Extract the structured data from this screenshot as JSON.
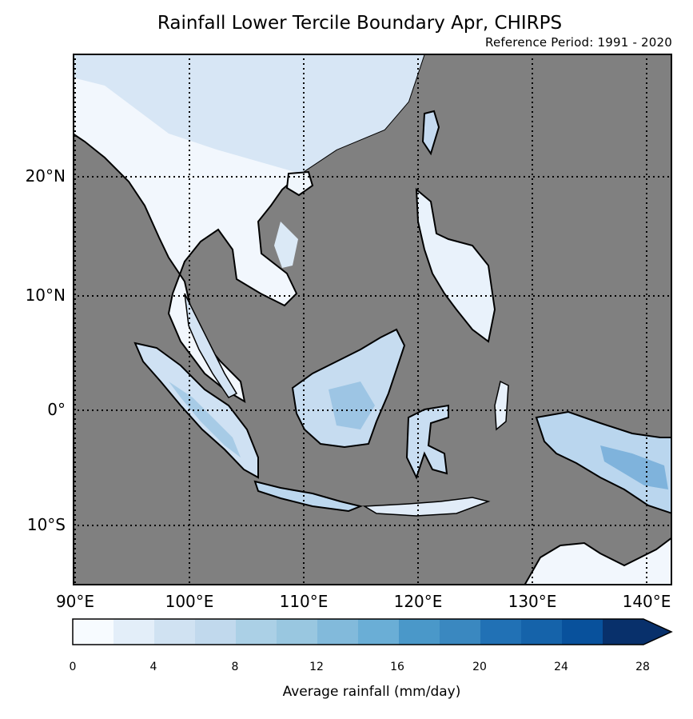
{
  "title": "Rainfall Lower Tercile Boundary Apr, CHIRPS",
  "subtitle": "Reference Period: 1991 - 2020",
  "lat_labels": [
    "20°N",
    "10°N",
    "0°",
    "10°S"
  ],
  "lon_labels": [
    "90°E",
    "100°E",
    "110°E",
    "120°E",
    "130°E",
    "140°E"
  ],
  "colorbar": {
    "label": "Average rainfall (mm/day)",
    "ticks": [
      "0",
      "4",
      "8",
      "12",
      "16",
      "20",
      "24",
      "28"
    ],
    "colors": [
      "#f7fbff",
      "#e3eef9",
      "#d0e2f2",
      "#c1d9ed",
      "#abd0e6",
      "#99c7e0",
      "#82badb",
      "#6aaed6",
      "#4a98c9",
      "#3a88c0",
      "#2171b5",
      "#1563aa",
      "#08519c",
      "#08306b"
    ]
  },
  "colors": {
    "ocean": "#808080",
    "land_light": "#f2f7fd",
    "land_mid": "#cfe1f3",
    "land_dark": "#7fb3dc"
  }
}
